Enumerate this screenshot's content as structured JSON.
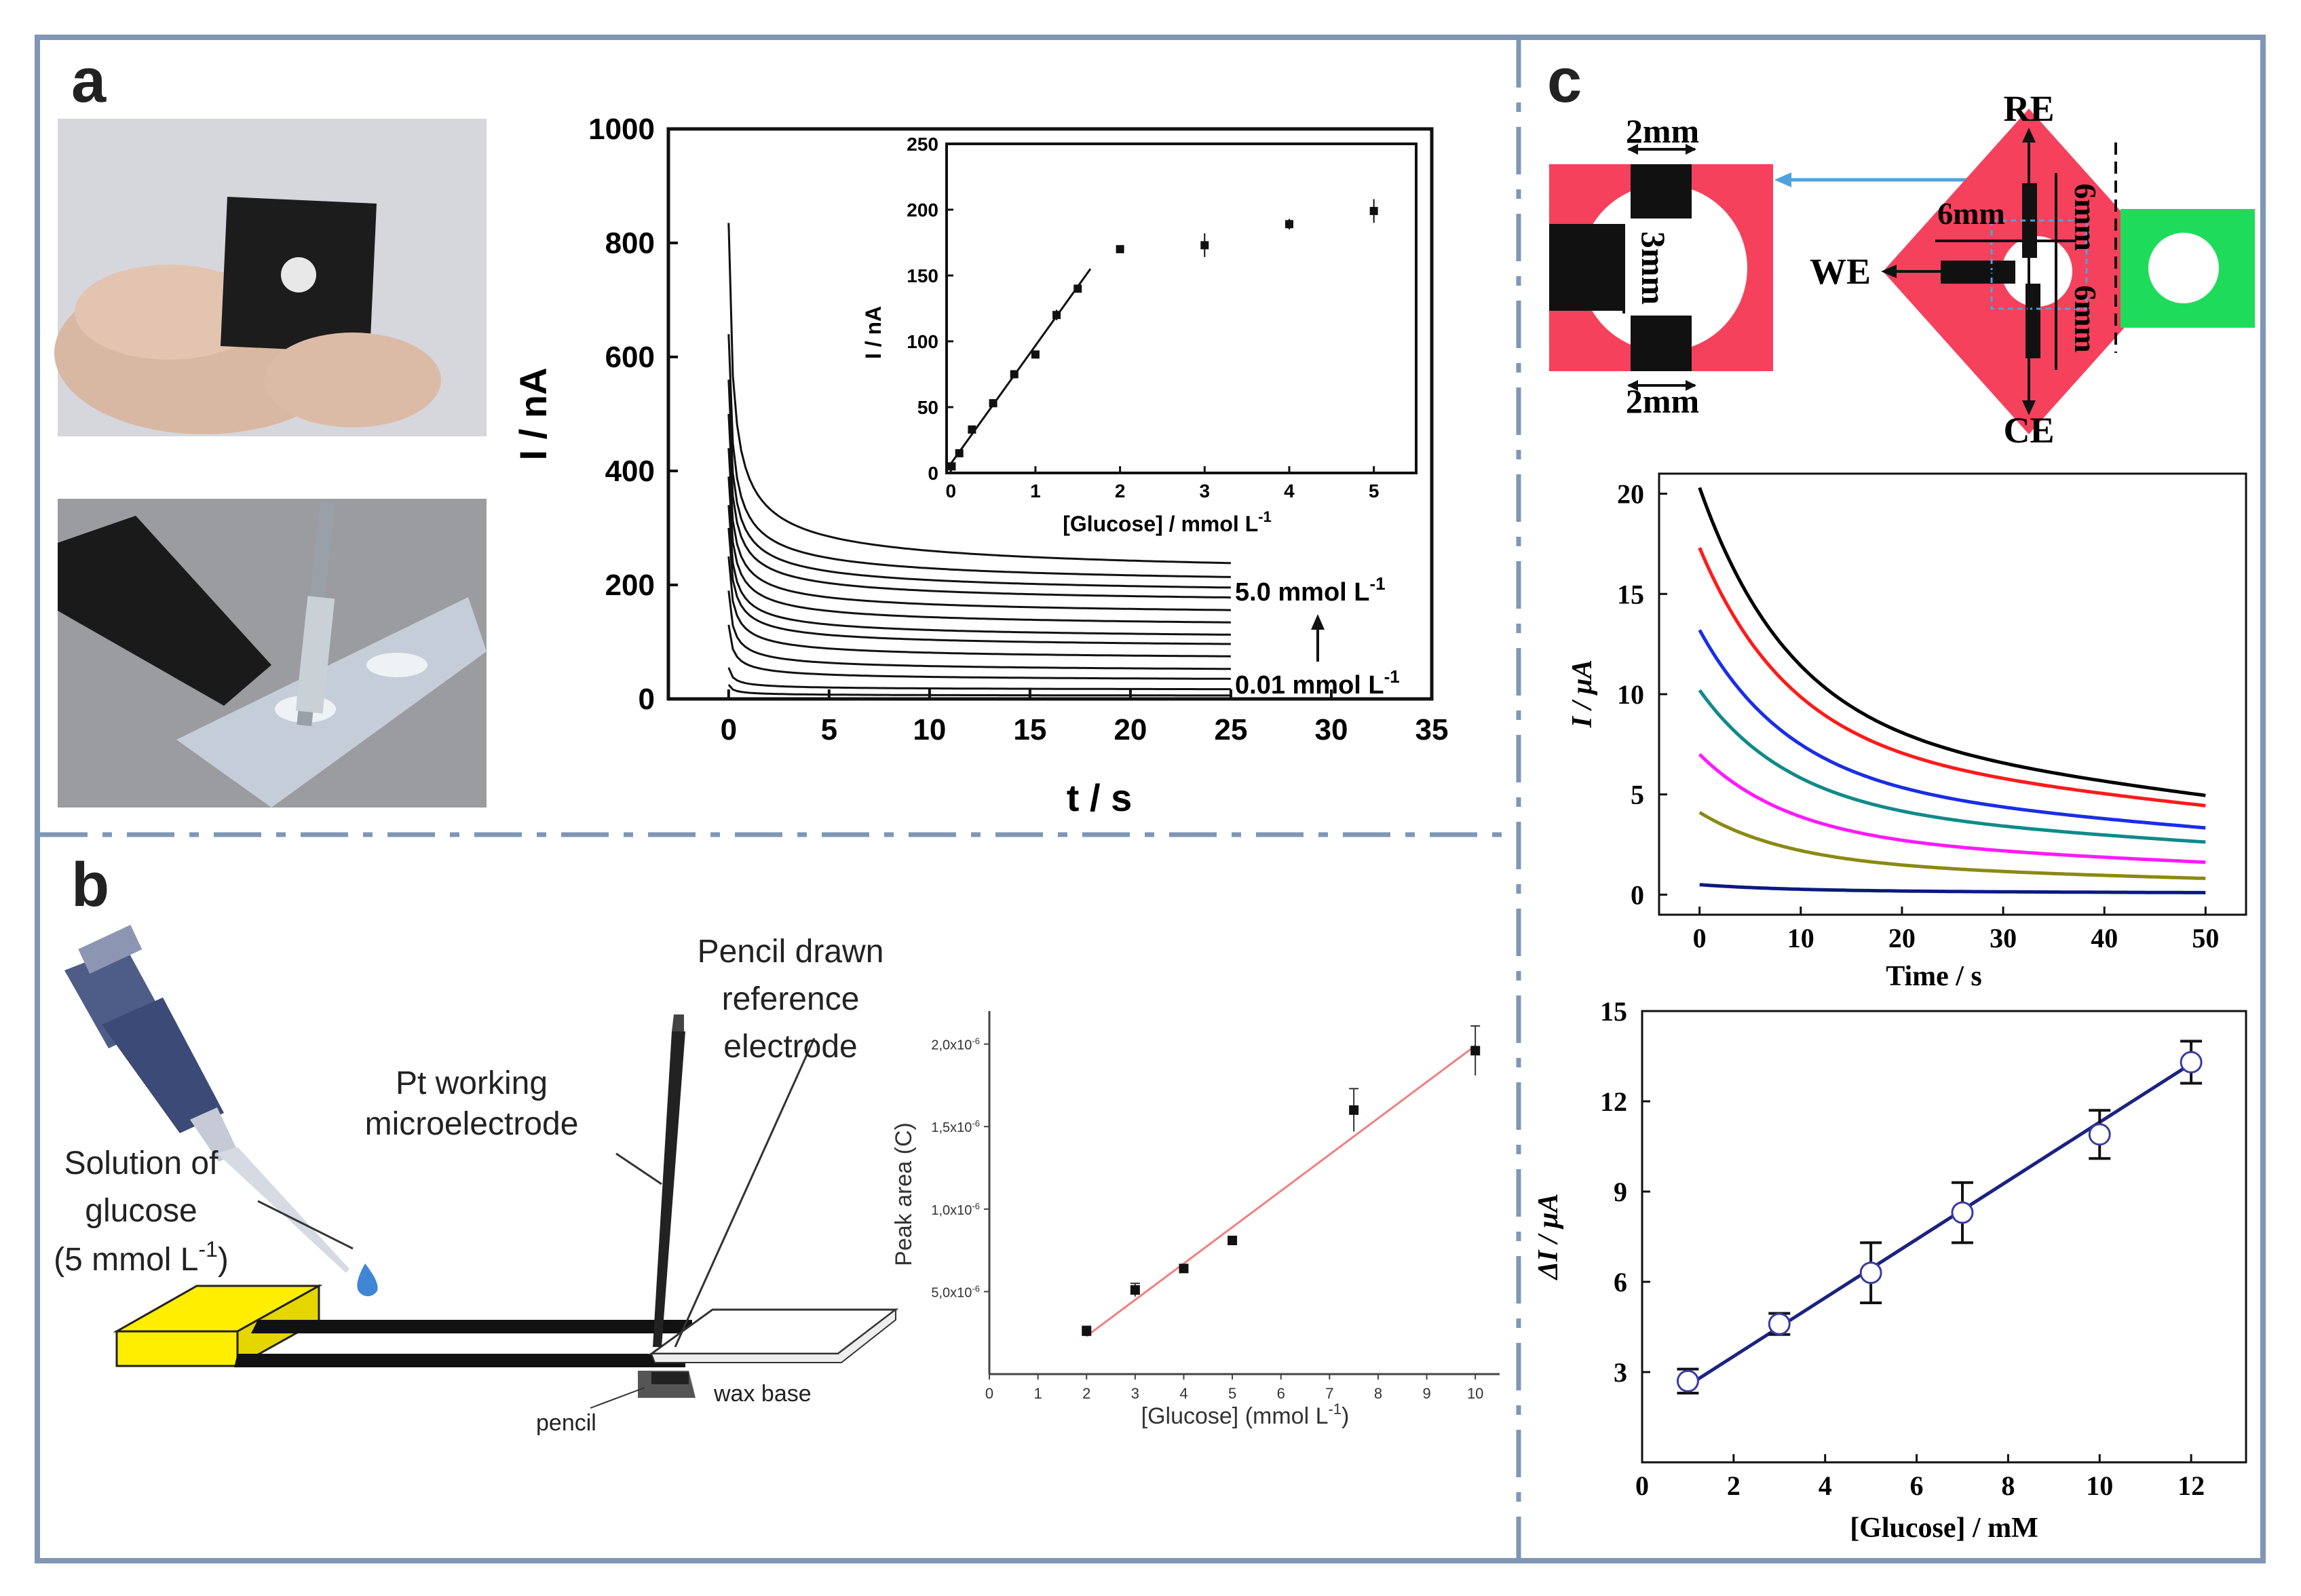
{
  "panels": {
    "a": {
      "label": "a",
      "main": {
        "type": "line",
        "xlabel": "t / s",
        "ylabel": "I / nA",
        "xlim": [
          -3,
          35
        ],
        "ylim": [
          0,
          1000
        ],
        "xticks": [
          0,
          5,
          10,
          15,
          20,
          25,
          30,
          35
        ],
        "yticks": [
          0,
          200,
          400,
          600,
          800,
          1000
        ],
        "annotation_top": "5.0 mmol L",
        "annotation_bottom": "0.01 mmol L",
        "annotation_sup": "-1",
        "series": [
          {
            "peak": 835,
            "plateau": 205
          },
          {
            "peak": 640,
            "plateau": 190
          },
          {
            "peak": 560,
            "plateau": 175
          },
          {
            "peak": 500,
            "plateau": 160
          },
          {
            "peak": 440,
            "plateau": 140
          },
          {
            "peak": 390,
            "plateau": 120
          },
          {
            "peak": 340,
            "plateau": 100
          },
          {
            "peak": 300,
            "plateau": 85
          },
          {
            "peak": 250,
            "plateau": 65
          },
          {
            "peak": 190,
            "plateau": 45
          },
          {
            "peak": 130,
            "plateau": 30
          },
          {
            "peak": 55,
            "plateau": 15
          },
          {
            "peak": 25,
            "plateau": 5
          }
        ]
      },
      "inset": {
        "type": "scatter",
        "xlabel": "[Glucose] / mmol L",
        "xlabel_sup": "-1",
        "ylabel": "I / nA",
        "xlim": [
          0,
          5.5
        ],
        "ylim": [
          0,
          250
        ],
        "xticks": [
          0,
          1,
          2,
          3,
          4,
          5
        ],
        "yticks": [
          0,
          50,
          100,
          150,
          200,
          250
        ],
        "x": [
          0.01,
          0.1,
          0.25,
          0.5,
          0.75,
          1.0,
          1.25,
          1.5,
          2,
          3,
          4,
          5
        ],
        "y": [
          5,
          15,
          33,
          53,
          75,
          90,
          120,
          140,
          170,
          173,
          189,
          199
        ],
        "err": [
          0,
          0,
          3,
          3,
          3,
          3,
          4,
          3,
          2,
          9,
          4,
          9
        ],
        "fit": {
          "x": [
            0,
            1.65
          ],
          "y": [
            7,
            155
          ]
        }
      }
    },
    "b": {
      "label": "b",
      "labels": {
        "solution_1": "Solution of",
        "solution_2": "glucose",
        "solution_3a": "(5 mmol L",
        "solution_3sup": "-1",
        "solution_3b": ")",
        "pt_1": "Pt working",
        "pt_2": "microelectrode",
        "pencil_1": "Pencil drawn",
        "pencil_2": "reference",
        "pencil_3": "electrode",
        "pencil": "pencil",
        "wax": "wax base"
      },
      "chart": {
        "type": "scatter",
        "xlabel": "[Glucose] (mmol L",
        "xlabel_sup": "-1",
        "xlabel_end": ")",
        "ylabel": "Peak area (C)",
        "xlim": [
          0,
          10.5
        ],
        "ylim": [
          0,
          2.2e-06
        ],
        "xticks": [
          0,
          1,
          2,
          3,
          4,
          5,
          6,
          7,
          8,
          9,
          10
        ],
        "yticks": [
          5e-07,
          1e-06,
          1.5e-06,
          2e-06
        ],
        "ytick_labels": [
          "5,0x10",
          "1,0x10",
          "1,5x10",
          "2,0x10"
        ],
        "ytick_exp": [
          "-6",
          "-6",
          "-6",
          "-6"
        ],
        "x": [
          2,
          3,
          4,
          5,
          7.5,
          10
        ],
        "y": [
          2.6e-07,
          5.1e-07,
          6.4e-07,
          8.1e-07,
          1.6e-06,
          1.96e-06
        ],
        "err": [
          3e-08,
          4e-08,
          0,
          0,
          1.3e-07,
          1.5e-07
        ],
        "fit": {
          "x": [
            2,
            10
          ],
          "y": [
            2.3e-07,
            1.99e-06
          ]
        }
      }
    },
    "c": {
      "label": "c",
      "diagram": {
        "dim_top": "2mm",
        "dim_mid": "3mm",
        "dim_bottom": "2mm",
        "dim_6mm_a": "6mm",
        "dim_6mm_b": "6mm",
        "dim_6mm_c": "6mm",
        "re": "RE",
        "we": "WE",
        "ce": "CE"
      },
      "top_chart": {
        "type": "line",
        "xlabel": "Time / s",
        "ylabel": "I / μA",
        "xlim": [
          -4,
          54
        ],
        "ylim": [
          -1,
          21
        ],
        "xticks": [
          0,
          10,
          20,
          30,
          40,
          50
        ],
        "yticks": [
          0,
          5,
          10,
          15,
          20
        ],
        "series": [
          {
            "color": "#000000",
            "peak": 20.3,
            "end": 4.9
          },
          {
            "color": "#ff1a1a",
            "peak": 17.3,
            "end": 4.4
          },
          {
            "color": "#1a2ee6",
            "peak": 13.2,
            "end": 3.3
          },
          {
            "color": "#0f8a8a",
            "peak": 10.2,
            "end": 2.6
          },
          {
            "color": "#ff1aff",
            "peak": 7.0,
            "end": 1.6
          },
          {
            "color": "#8a8a14",
            "peak": 4.1,
            "end": 0.8
          },
          {
            "color": "#0a1a80",
            "peak": 0.5,
            "end": 0.1
          }
        ]
      },
      "bottom_chart": {
        "type": "scatter",
        "xlabel": "[Glucose] / mM",
        "ylabel": "ΔI / μA",
        "xlim": [
          0,
          13.2
        ],
        "ylim": [
          0,
          15
        ],
        "xticks": [
          0,
          2,
          4,
          6,
          8,
          10,
          12
        ],
        "yticks": [
          3,
          6,
          9,
          12,
          15
        ],
        "x": [
          1,
          3,
          5,
          7,
          10,
          12
        ],
        "y": [
          2.7,
          4.6,
          6.3,
          8.3,
          10.9,
          13.3
        ],
        "err": [
          0.4,
          0.35,
          1.0,
          1.0,
          0.8,
          0.7
        ],
        "fit": {
          "x": [
            1,
            12
          ],
          "y": [
            2.55,
            13.25
          ]
        }
      }
    }
  },
  "colors": {
    "frame": "#7f97b5",
    "pink": "#f5415c",
    "green": "#1edc5a",
    "yellow": "#ffee00",
    "blue_arrow": "#4da3dc",
    "fit_red": "#f08080",
    "fit_navy": "#1a2380"
  }
}
